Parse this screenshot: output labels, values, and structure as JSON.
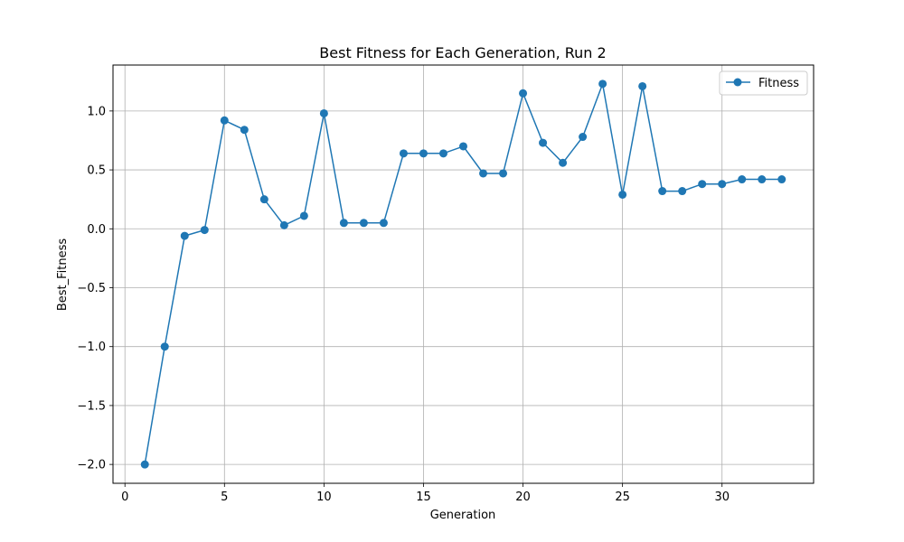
{
  "chart_data": {
    "type": "line",
    "title": "Best Fitness for Each Generation, Run 2",
    "xlabel": "Generation",
    "ylabel": "Best_Fitness",
    "xlim": [
      -0.6,
      34.6
    ],
    "ylim": [
      -2.16,
      1.39
    ],
    "xticks": [
      0,
      5,
      10,
      15,
      20,
      25,
      30
    ],
    "xtick_labels": [
      "0",
      "5",
      "10",
      "15",
      "20",
      "25",
      "30"
    ],
    "yticks": [
      -2.0,
      -1.5,
      -1.0,
      -0.5,
      0.0,
      0.5,
      1.0
    ],
    "ytick_labels": [
      "−2.0",
      "−1.5",
      "−1.0",
      "−0.5",
      "0.0",
      "0.5",
      "1.0"
    ],
    "grid": true,
    "legend_position": "top-right",
    "series": [
      {
        "name": "Fitness",
        "color": "#1f77b4",
        "marker": "circle",
        "x": [
          1,
          2,
          3,
          4,
          5,
          6,
          7,
          8,
          9,
          10,
          11,
          12,
          13,
          14,
          15,
          16,
          17,
          18,
          19,
          20,
          21,
          22,
          23,
          24,
          25,
          26,
          27,
          28,
          29,
          30,
          31,
          32,
          33
        ],
        "y": [
          -2.0,
          -1.0,
          -0.06,
          -0.01,
          0.92,
          0.84,
          0.25,
          0.03,
          0.11,
          0.98,
          0.05,
          0.05,
          0.05,
          0.64,
          0.64,
          0.64,
          0.7,
          0.47,
          0.47,
          1.15,
          0.73,
          0.56,
          0.78,
          1.23,
          0.29,
          1.21,
          0.32,
          0.32,
          0.38,
          0.38,
          0.42,
          0.42,
          0.42
        ]
      }
    ]
  }
}
